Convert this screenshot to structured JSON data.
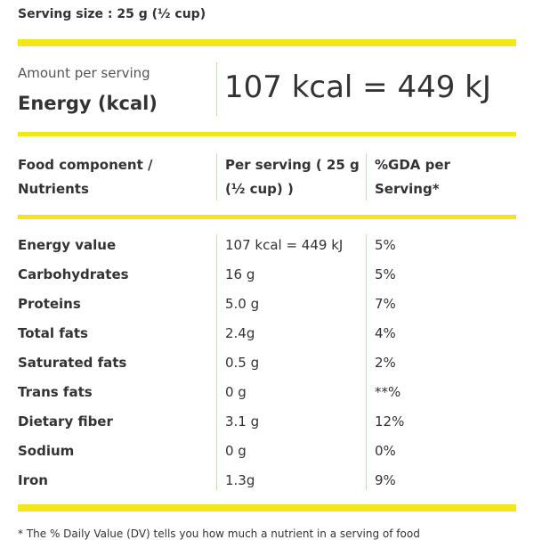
{
  "serving_size": "Serving size : 25 g (½ cup)",
  "energy": {
    "label_small": "Amount per serving",
    "label": "Energy (kcal)",
    "value": "107 kcal = 449 kJ"
  },
  "table": {
    "header": [
      [
        "Food component /",
        "Nutrients"
      ],
      [
        "Per serving ( 25 g",
        "(½ cup) )"
      ],
      [
        "%GDA per",
        "Serving*"
      ]
    ],
    "rows": [
      [
        "Energy value",
        "107 kcal = 449 kJ",
        "5%"
      ],
      [
        "Carbohydrates",
        "16 g",
        "5%"
      ],
      [
        "Proteins",
        "5.0 g",
        "7%"
      ],
      [
        "Total fats",
        "2.4g",
        "4%"
      ],
      [
        "Saturated fats",
        "0.5 g",
        "2%"
      ],
      [
        "Trans fats",
        "0 g",
        "**%"
      ],
      [
        "Dietary fiber",
        "3.1 g",
        "12%"
      ],
      [
        "Sodium",
        "0 g",
        "0%"
      ],
      [
        "Iron",
        "1.3g",
        "9%"
      ]
    ]
  },
  "footnote": "* The % Daily Value (DV) tells you how much a nutrient in a serving of food"
}
